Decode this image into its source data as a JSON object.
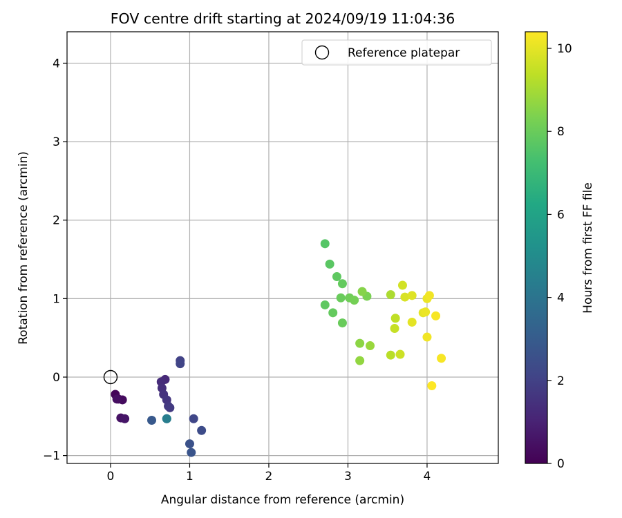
{
  "chart_data": {
    "type": "scatter",
    "title": "FOV centre drift starting at 2024/09/19 11:04:36",
    "xlabel": "Angular distance from reference (arcmin)",
    "ylabel": "Rotation from reference (arcmin)",
    "xlim": [
      -0.55,
      4.9
    ],
    "ylim": [
      -1.1,
      4.4
    ],
    "x_ticks": [
      0,
      1,
      2,
      3,
      4
    ],
    "y_ticks": [
      -1,
      0,
      1,
      2,
      3,
      4
    ],
    "x_tick_labels": [
      "0",
      "1",
      "2",
      "3",
      "4"
    ],
    "y_tick_labels": [
      "−1",
      "0",
      "1",
      "2",
      "3",
      "4"
    ],
    "grid": true,
    "legend": {
      "placement": "top-right",
      "entries": [
        "Reference platepar"
      ]
    },
    "colorbar": {
      "label": "Hours from first FF file",
      "colormap": "viridis",
      "range": [
        0,
        10.4
      ],
      "ticks": [
        0,
        2,
        4,
        6,
        8,
        10
      ],
      "tick_labels": [
        "0",
        "2",
        "4",
        "6",
        "8",
        "10"
      ]
    },
    "reference_point": {
      "x": 0,
      "y": 0
    },
    "points": [
      {
        "x": 0.06,
        "y": -0.22,
        "hours": 0.1
      },
      {
        "x": 0.1,
        "y": -0.28,
        "hours": 0.2
      },
      {
        "x": 0.15,
        "y": -0.29,
        "hours": 0.3
      },
      {
        "x": 0.08,
        "y": -0.28,
        "hours": 0.4
      },
      {
        "x": 0.13,
        "y": -0.52,
        "hours": 0.5
      },
      {
        "x": 0.18,
        "y": -0.53,
        "hours": 0.6
      },
      {
        "x": 0.69,
        "y": -0.03,
        "hours": 1.2
      },
      {
        "x": 0.64,
        "y": -0.06,
        "hours": 1.3
      },
      {
        "x": 0.65,
        "y": -0.14,
        "hours": 1.4
      },
      {
        "x": 0.67,
        "y": -0.22,
        "hours": 1.5
      },
      {
        "x": 0.71,
        "y": -0.29,
        "hours": 1.6
      },
      {
        "x": 0.73,
        "y": -0.37,
        "hours": 1.7
      },
      {
        "x": 0.75,
        "y": -0.39,
        "hours": 1.8
      },
      {
        "x": 0.88,
        "y": 0.21,
        "hours": 2.0
      },
      {
        "x": 0.88,
        "y": 0.17,
        "hours": 2.1
      },
      {
        "x": 1.05,
        "y": -0.53,
        "hours": 2.2
      },
      {
        "x": 1.15,
        "y": -0.68,
        "hours": 2.4
      },
      {
        "x": 1.0,
        "y": -0.85,
        "hours": 2.6
      },
      {
        "x": 1.02,
        "y": -0.96,
        "hours": 2.7
      },
      {
        "x": 0.52,
        "y": -0.55,
        "hours": 2.9
      },
      {
        "x": 0.71,
        "y": -0.53,
        "hours": 3.4
      },
      {
        "x": 0.71,
        "y": -0.53,
        "hours": 4.4
      },
      {
        "x": 2.71,
        "y": 1.7,
        "hours": 7.6
      },
      {
        "x": 2.77,
        "y": 1.44,
        "hours": 7.7
      },
      {
        "x": 2.86,
        "y": 1.28,
        "hours": 7.8
      },
      {
        "x": 2.93,
        "y": 1.19,
        "hours": 7.9
      },
      {
        "x": 2.71,
        "y": 0.92,
        "hours": 7.8
      },
      {
        "x": 2.81,
        "y": 0.82,
        "hours": 7.9
      },
      {
        "x": 2.93,
        "y": 0.69,
        "hours": 8.0
      },
      {
        "x": 2.91,
        "y": 1.01,
        "hours": 8.0
      },
      {
        "x": 3.02,
        "y": 1.01,
        "hours": 8.1
      },
      {
        "x": 3.08,
        "y": 0.98,
        "hours": 8.2
      },
      {
        "x": 3.24,
        "y": 1.03,
        "hours": 8.3
      },
      {
        "x": 3.18,
        "y": 1.09,
        "hours": 8.5
      },
      {
        "x": 3.15,
        "y": 0.43,
        "hours": 8.6
      },
      {
        "x": 3.15,
        "y": 0.21,
        "hours": 8.7
      },
      {
        "x": 3.28,
        "y": 0.4,
        "hours": 8.8
      },
      {
        "x": 3.54,
        "y": 1.05,
        "hours": 9.1
      },
      {
        "x": 3.54,
        "y": 0.28,
        "hours": 9.3
      },
      {
        "x": 3.6,
        "y": 0.75,
        "hours": 9.4
      },
      {
        "x": 3.59,
        "y": 0.62,
        "hours": 9.5
      },
      {
        "x": 3.66,
        "y": 0.29,
        "hours": 9.6
      },
      {
        "x": 3.69,
        "y": 1.17,
        "hours": 9.7
      },
      {
        "x": 3.72,
        "y": 1.02,
        "hours": 9.8
      },
      {
        "x": 3.81,
        "y": 1.04,
        "hours": 9.9
      },
      {
        "x": 3.81,
        "y": 0.7,
        "hours": 10.0
      },
      {
        "x": 3.95,
        "y": 0.82,
        "hours": 10.0
      },
      {
        "x": 3.98,
        "y": 0.83,
        "hours": 10.1
      },
      {
        "x": 4.0,
        "y": 1.0,
        "hours": 10.1
      },
      {
        "x": 4.03,
        "y": 1.04,
        "hours": 10.2
      },
      {
        "x": 4.0,
        "y": 0.51,
        "hours": 10.2
      },
      {
        "x": 4.11,
        "y": 0.78,
        "hours": 10.3
      },
      {
        "x": 4.18,
        "y": 0.24,
        "hours": 10.3
      },
      {
        "x": 4.06,
        "y": -0.11,
        "hours": 10.4
      }
    ]
  }
}
